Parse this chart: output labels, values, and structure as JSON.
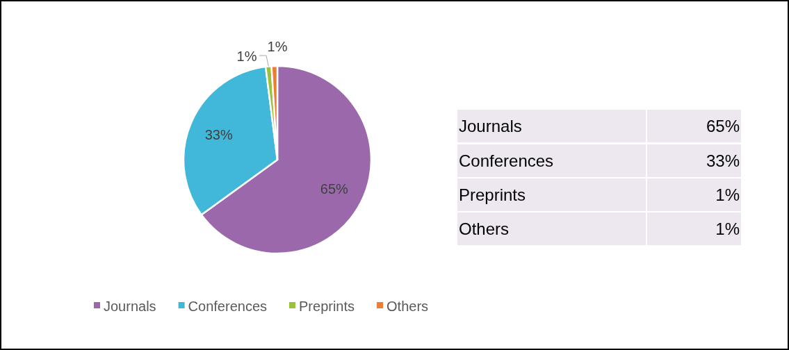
{
  "chart_data": {
    "type": "pie",
    "categories": [
      "Journals",
      "Conferences",
      "Preprints",
      "Others"
    ],
    "values": [
      65,
      33,
      1,
      1
    ],
    "colors": [
      "#9b69ab",
      "#41b8d9",
      "#9bc13c",
      "#ed7d31"
    ],
    "value_labels": [
      "65%",
      "33%",
      "1%",
      "1%"
    ],
    "legend": "bottom"
  }
}
